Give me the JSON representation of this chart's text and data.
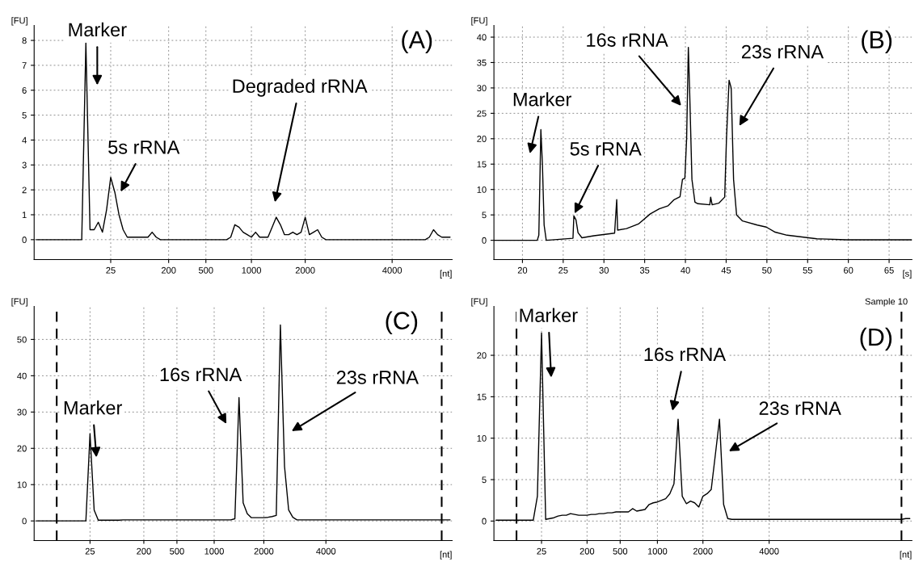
{
  "chart_data": [
    {
      "type": "line",
      "xlabel": "[nt]",
      "ylabel": "[FU]",
      "ylim": [
        -0.8,
        8.6
      ],
      "categories": [
        null,
        null,
        null,
        null,
        null,
        null,
        null,
        null,
        null,
        null,
        null,
        null,
        null,
        null,
        null,
        null,
        null,
        null,
        "25",
        null,
        null,
        null,
        null,
        null,
        null,
        null,
        null,
        null,
        null,
        null,
        null,
        null,
        "200",
        null,
        null,
        null,
        null,
        null,
        null,
        null,
        null,
        "500",
        null,
        null,
        null,
        null,
        null,
        null,
        null,
        null,
        null,
        null,
        "1000",
        null,
        null,
        null,
        null,
        null,
        null,
        null,
        null,
        null,
        null,
        null,
        null,
        "2000",
        null,
        null,
        null,
        null,
        null,
        null,
        null,
        null,
        null,
        null,
        null,
        null,
        null,
        null,
        null,
        null,
        null,
        null,
        null,
        null,
        "4000",
        null,
        null,
        null,
        null,
        null,
        null,
        null,
        null,
        null,
        null,
        null,
        null,
        null,
        null
      ],
      "yticks": [
        0,
        1,
        2,
        3,
        4,
        5,
        6,
        7,
        8
      ],
      "grid": true,
      "series": [
        {
          "color": "#000000",
          "values": [
            0,
            0,
            0,
            0,
            0,
            0,
            0,
            0,
            0,
            0,
            0,
            0,
            7.9,
            0.4,
            0.4,
            0.7,
            0.3,
            1.2,
            2.5,
            1.9,
            1.0,
            0.4,
            0.1,
            0.1,
            0.1,
            0.1,
            0.1,
            0.1,
            0.3,
            0.1,
            0,
            0,
            0,
            0,
            0,
            0,
            0,
            0,
            0,
            0,
            0,
            0,
            0,
            0,
            0,
            0,
            0,
            0.1,
            0.6,
            0.5,
            0.3,
            0.2,
            0.1,
            0.3,
            0.1,
            0.1,
            0.1,
            0.5,
            0.9,
            0.6,
            0.2,
            0.2,
            0.3,
            0.2,
            0.3,
            0.9,
            0.2,
            0.3,
            0.4,
            0.1,
            0,
            0,
            0,
            0,
            0,
            0,
            0,
            0,
            0,
            0,
            0,
            0,
            0,
            0,
            0,
            0,
            0,
            0,
            0,
            0,
            0,
            0,
            0,
            0,
            0,
            0.1,
            0.4,
            0.2,
            0.1,
            0.1,
            0.1
          ]
        }
      ],
      "annotations": [
        "(A)",
        "Marker",
        "5s rRNA",
        "Degraded rRNA"
      ]
    },
    {
      "type": "line",
      "xlabel": "[s]",
      "ylabel": "[FU]",
      "xlim": [
        16.5,
        67.8
      ],
      "ylim": [
        -3.8,
        42.3
      ],
      "xticks": [
        20,
        25,
        30,
        35,
        40,
        45,
        50,
        55,
        60,
        65
      ],
      "yticks": [
        0,
        5,
        10,
        15,
        20,
        25,
        30,
        35,
        40
      ],
      "grid": true,
      "series": [
        {
          "color": "#000000",
          "x": [
            16.53,
            21.82,
            22.01,
            22.26,
            22.45,
            22.66,
            22.92,
            26.2,
            26.31,
            26.57,
            26.82,
            27.3,
            28.76,
            31.31,
            31.57,
            31.68,
            32.77,
            34.23,
            35.69,
            36.79,
            37.88,
            38.61,
            39.34,
            39.64,
            39.93,
            40.15,
            40.36,
            40.51,
            40.8,
            41.17,
            41.53,
            42.99,
            43.1,
            43.28,
            44.09,
            44.82,
            45.04,
            45.36,
            45.62,
            45.91,
            46.28,
            47.01,
            48.83,
            49.93,
            51.02,
            52.48,
            56.13,
            59.78,
            67.8
          ],
          "values": [
            0,
            0,
            1,
            21.8,
            15,
            3,
            0,
            0.4,
            4.8,
            4,
            1.5,
            0.5,
            0.9,
            1.4,
            8,
            2,
            2.3,
            3.2,
            5.2,
            6.2,
            6.8,
            8,
            8.6,
            12,
            12.2,
            20,
            38,
            30,
            12,
            7.5,
            7.2,
            7,
            8.5,
            7,
            7.3,
            8.5,
            20,
            31.5,
            30,
            12,
            5,
            3.8,
            3,
            2.6,
            1.6,
            1,
            0.3,
            0.1,
            0.1
          ]
        }
      ],
      "annotations": [
        "(B)",
        "Marker",
        "5s rRNA",
        "16s rRNA",
        "23s rRNA"
      ]
    },
    {
      "type": "line",
      "xlabel": "[nt]",
      "ylabel": "[FU]",
      "ylim": [
        -5.4,
        59.1
      ],
      "categories": [
        null,
        null,
        null,
        null,
        null,
        null,
        null,
        null,
        null,
        null,
        null,
        null,
        null,
        "25",
        null,
        null,
        null,
        null,
        null,
        null,
        null,
        null,
        null,
        null,
        null,
        null,
        "200",
        null,
        null,
        null,
        null,
        null,
        null,
        null,
        "500",
        null,
        null,
        null,
        null,
        null,
        null,
        null,
        null,
        "1000",
        null,
        null,
        null,
        null,
        null,
        null,
        null,
        null,
        null,
        null,
        null,
        "2000",
        null,
        null,
        null,
        null,
        null,
        null,
        null,
        null,
        null,
        null,
        null,
        null,
        null,
        null,
        "4000",
        null,
        null,
        null,
        null,
        null,
        null,
        null,
        null,
        null,
        null,
        null,
        null,
        null,
        null,
        null,
        null,
        null,
        null,
        null,
        null,
        null,
        null,
        null,
        null,
        null,
        null,
        null,
        null,
        null,
        null
      ],
      "yticks": [
        0,
        10,
        20,
        30,
        40,
        50
      ],
      "grid": true,
      "series": [
        {
          "color": "#000000",
          "values": [
            0,
            0,
            0,
            0,
            0,
            0,
            0,
            0,
            0,
            0,
            0,
            0,
            0,
            24,
            3,
            0.2,
            0.2,
            0.2,
            0.2,
            0.2,
            0.2,
            0.3,
            0.3,
            0.3,
            0.3,
            0.3,
            0.3,
            0.3,
            0.3,
            0.3,
            0.3,
            0.3,
            0.3,
            0.3,
            0.3,
            0.3,
            0.3,
            0.3,
            0.3,
            0.3,
            0.3,
            0.3,
            0.3,
            0.3,
            0.3,
            0.3,
            0.3,
            0.3,
            0.6,
            34,
            5,
            2,
            0.9,
            0.9,
            0.9,
            0.9,
            1.0,
            1.2,
            1.5,
            54,
            15,
            3,
            1,
            0.3,
            0.3,
            0.3,
            0.3,
            0.3,
            0.3,
            0.3,
            0.3,
            0.3,
            0.3,
            0.3,
            0.3,
            0.3,
            0.3,
            0.3,
            0.3,
            0.3,
            0.3,
            0.3,
            0.3,
            0.3,
            0.3,
            0.3,
            0.3,
            0.3,
            0.3,
            0.3,
            0.3,
            0.3,
            0.3,
            0.3,
            0.3,
            0.3,
            0.3,
            0.3,
            0.3,
            0.3,
            0.3
          ]
        }
      ],
      "annotations": [
        "(C)",
        "Marker",
        "16s rRNA",
        "23s rRNA"
      ]
    },
    {
      "type": "line",
      "xlabel": "[nt]",
      "ylabel": "[FU]",
      "ylim": [
        -2.35,
        25.9
      ],
      "categories": [
        null,
        null,
        null,
        null,
        null,
        null,
        null,
        null,
        null,
        null,
        null,
        "25",
        null,
        null,
        null,
        null,
        null,
        null,
        null,
        null,
        null,
        null,
        "200",
        null,
        null,
        null,
        null,
        null,
        null,
        null,
        "500",
        null,
        null,
        null,
        null,
        null,
        null,
        null,
        null,
        "1000",
        null,
        null,
        null,
        null,
        null,
        null,
        null,
        null,
        null,
        null,
        "2000",
        null,
        null,
        null,
        null,
        null,
        null,
        null,
        null,
        null,
        null,
        null,
        null,
        null,
        null,
        null,
        "4000",
        null,
        null,
        null,
        null,
        null,
        null,
        null,
        null,
        null,
        null,
        null,
        null,
        null,
        null,
        null,
        null,
        null,
        null,
        null,
        null,
        null,
        null,
        null,
        null,
        null,
        null,
        null,
        null,
        null,
        null,
        null,
        null,
        null,
        null
      ],
      "yticks": [
        0,
        5,
        10,
        15,
        20
      ],
      "grid": true,
      "series": [
        {
          "color": "#000000",
          "values": [
            0.1,
            0.1,
            0.1,
            0.1,
            0.1,
            0.1,
            0.1,
            0.1,
            0.1,
            0.1,
            3,
            22.7,
            0.2,
            0.3,
            0.4,
            0.6,
            0.7,
            0.7,
            0.9,
            0.8,
            0.7,
            0.7,
            0.7,
            0.8,
            0.8,
            0.9,
            0.9,
            1.0,
            1.0,
            1.1,
            1.1,
            1.1,
            1.1,
            1.5,
            1.2,
            1.3,
            1.4,
            2.0,
            2.2,
            2.3,
            2.5,
            2.7,
            3.3,
            4.5,
            12.3,
            3,
            2.1,
            2.4,
            2.2,
            1.7,
            3.0,
            3.3,
            3.8,
            8,
            12.3,
            2,
            0.3,
            0.2,
            0.2,
            0.2,
            0.2,
            0.2,
            0.2,
            0.2,
            0.2,
            0.2,
            0.2,
            0.2,
            0.2,
            0.2,
            0.2,
            0.2,
            0.2,
            0.2,
            0.2,
            0.2,
            0.2,
            0.2,
            0.2,
            0.2,
            0.2,
            0.2,
            0.2,
            0.2,
            0.2,
            0.2,
            0.2,
            0.2,
            0.2,
            0.2,
            0.2,
            0.2,
            0.2,
            0.2,
            0.2,
            0.2,
            0.2,
            0.2,
            0.2,
            0.3,
            0.3
          ]
        }
      ],
      "annotations": [
        "(D)",
        "Sample 10",
        "Marker",
        "16s rRNA",
        "23s rRNA"
      ]
    }
  ]
}
